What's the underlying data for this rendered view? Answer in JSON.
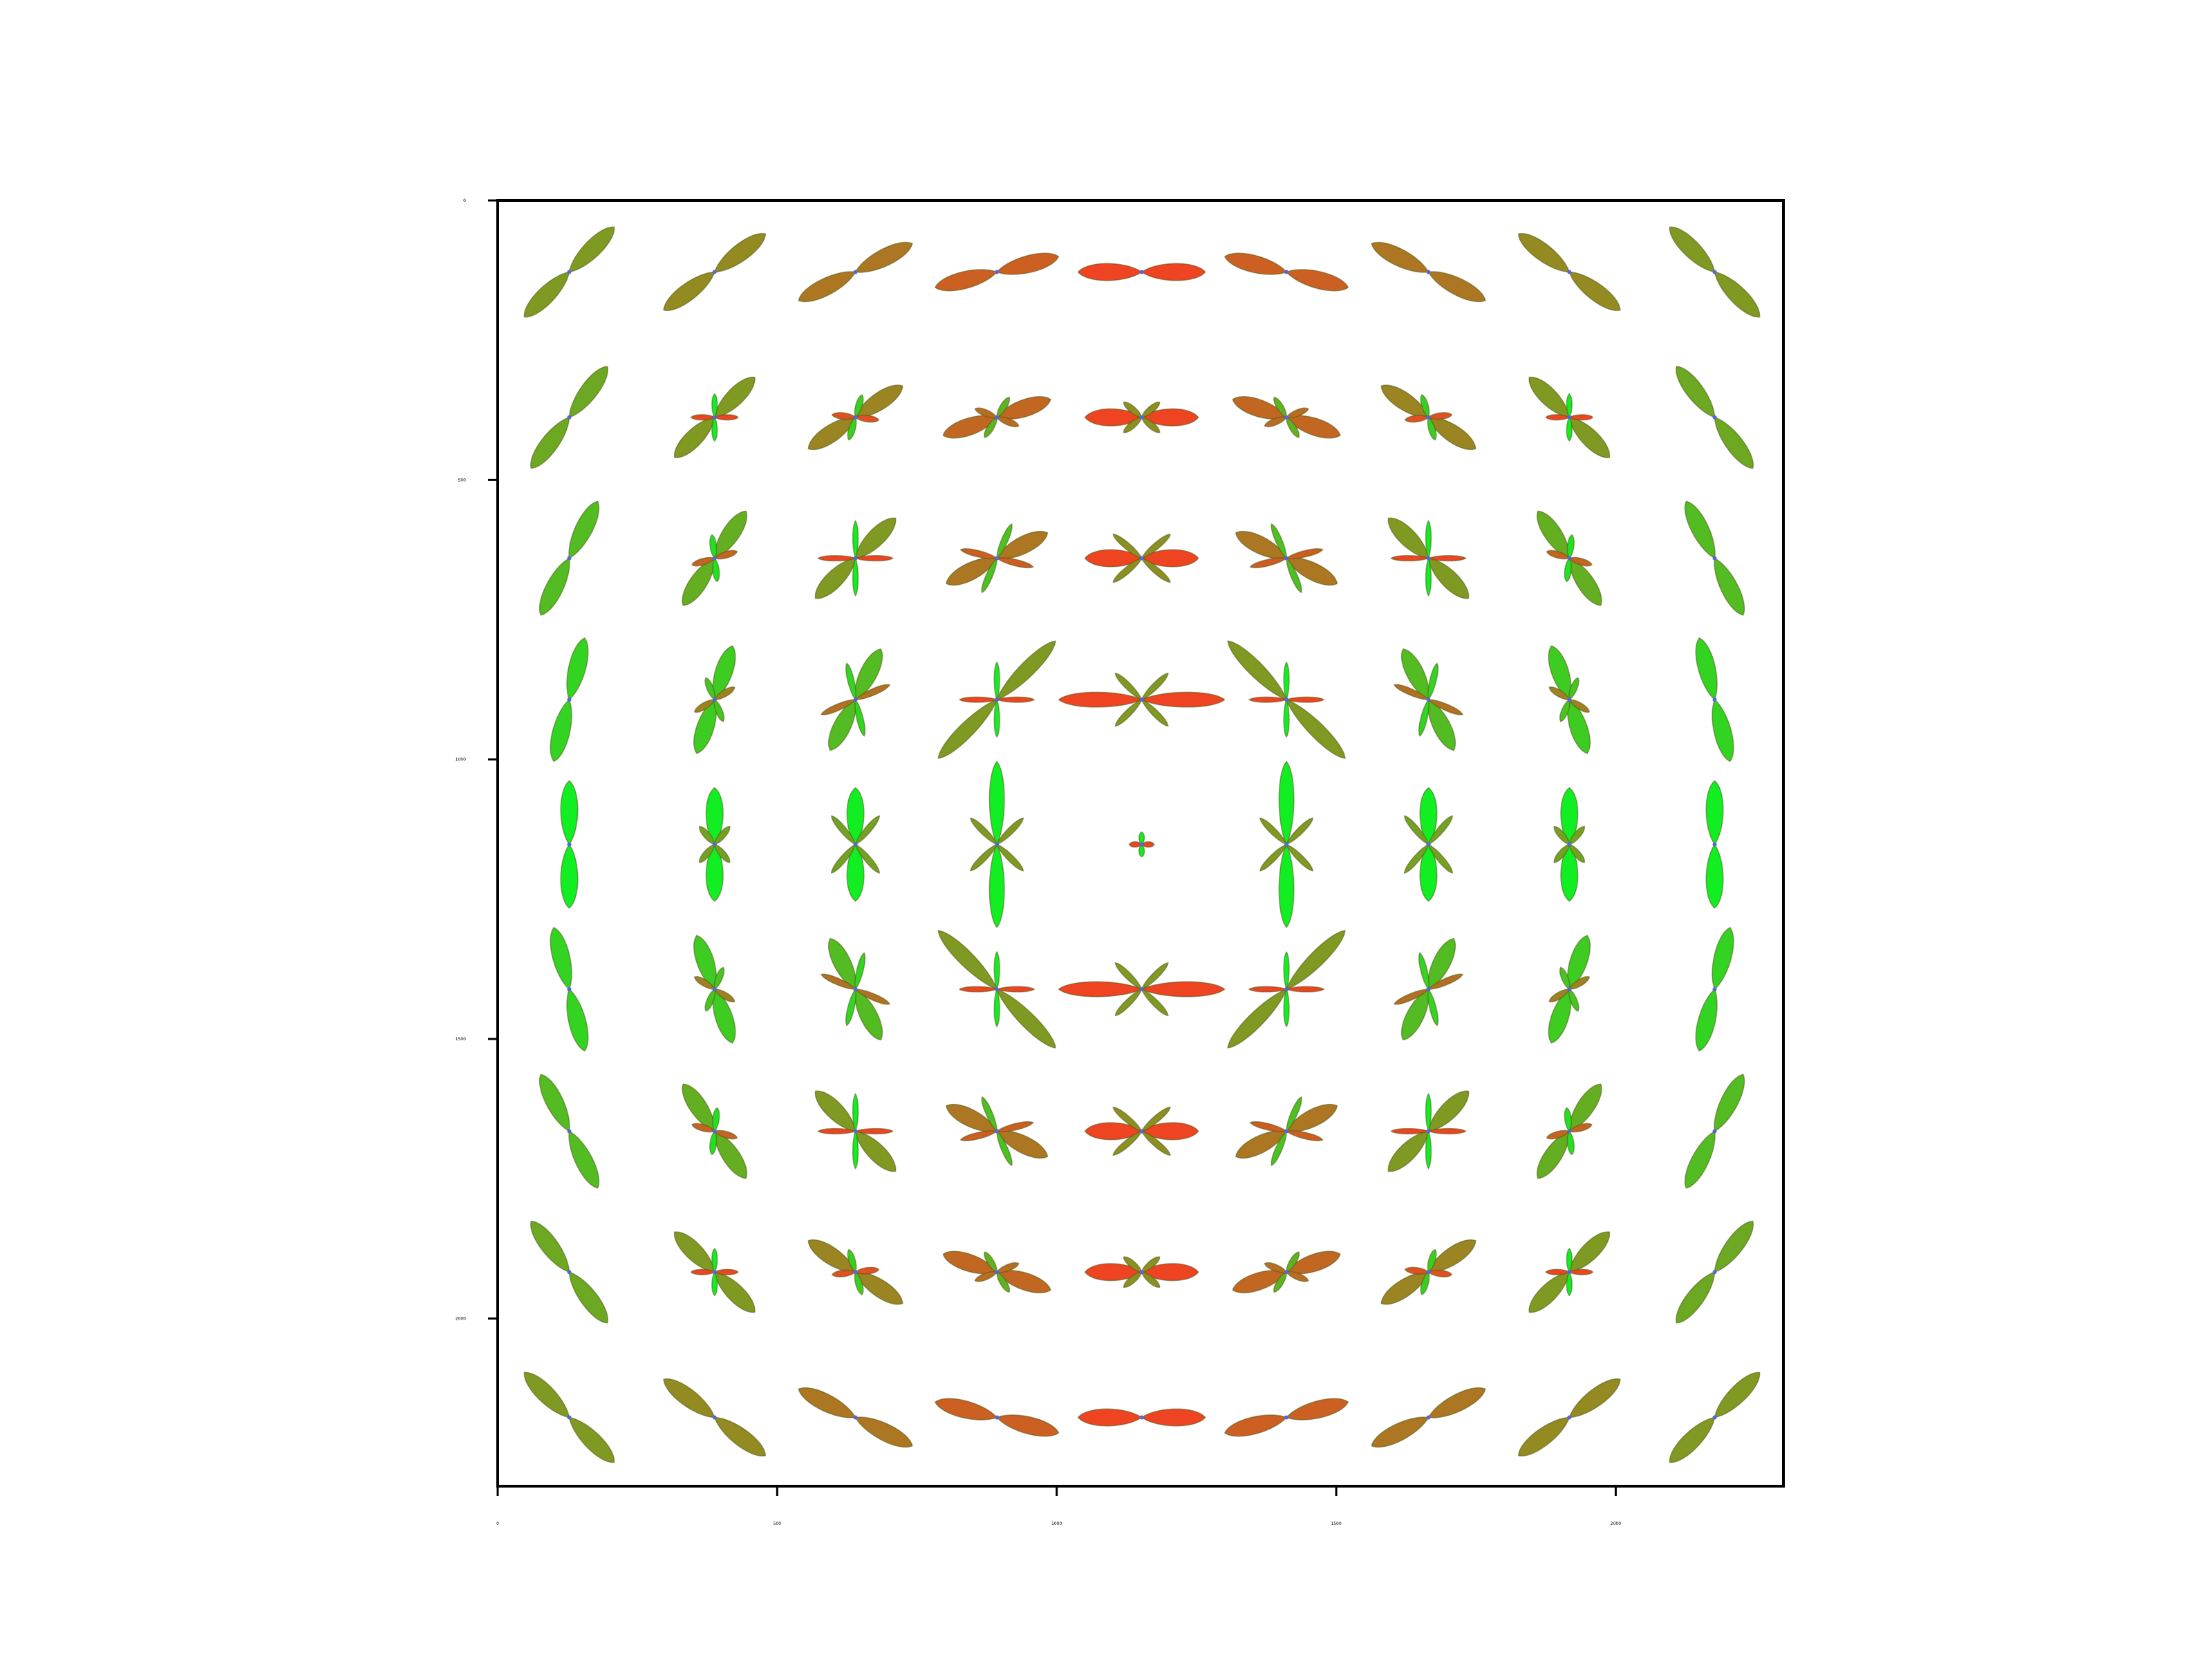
{
  "plot": {
    "type": "odf-glyph-field",
    "xlim": [
      0,
      2300
    ],
    "ylim": [
      0,
      2300
    ],
    "y_inverted": true,
    "x_ticks": [
      0,
      500,
      1000,
      1500,
      2000
    ],
    "x_tick_labels": [
      "0",
      "500",
      "1000",
      "1500",
      "2000"
    ],
    "y_ticks": [
      0,
      500,
      1000,
      1500,
      2000
    ],
    "y_tick_labels": [
      "0",
      "500",
      "1000",
      "1500",
      "2000"
    ],
    "grid": false,
    "colors": {
      "horizontal_lobe": "#ee1111",
      "vertical_lobe": "#11ee22",
      "diagonal_lobe": "#99aa22",
      "center_mark": "#5566dd"
    },
    "glyph_grid": {
      "columns": 9,
      "rows": 9,
      "x_positions": [
        128,
        388,
        640,
        893,
        1152,
        1411,
        1665,
        1917,
        2177
      ],
      "y_positions": [
        128,
        388,
        640,
        893,
        1152,
        1411,
        1665,
        1917,
        2177
      ]
    }
  }
}
